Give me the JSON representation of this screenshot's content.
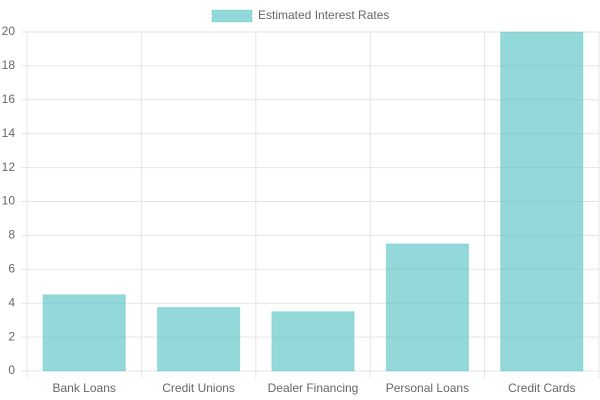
{
  "chart_data": {
    "type": "bar",
    "categories": [
      "Bank Loans",
      "Credit Unions",
      "Dealer Financing",
      "Personal Loans",
      "Credit Cards"
    ],
    "series": [
      {
        "name": "Estimated Interest Rates",
        "color": "#4bc0c0",
        "values": [
          4.5,
          3.75,
          3.5,
          7.5,
          20
        ]
      }
    ],
    "ylim": [
      0,
      20
    ],
    "yticks": [
      0,
      2,
      4,
      6,
      8,
      10,
      12,
      14,
      16,
      18,
      20
    ],
    "grid": true,
    "legend": "top"
  }
}
